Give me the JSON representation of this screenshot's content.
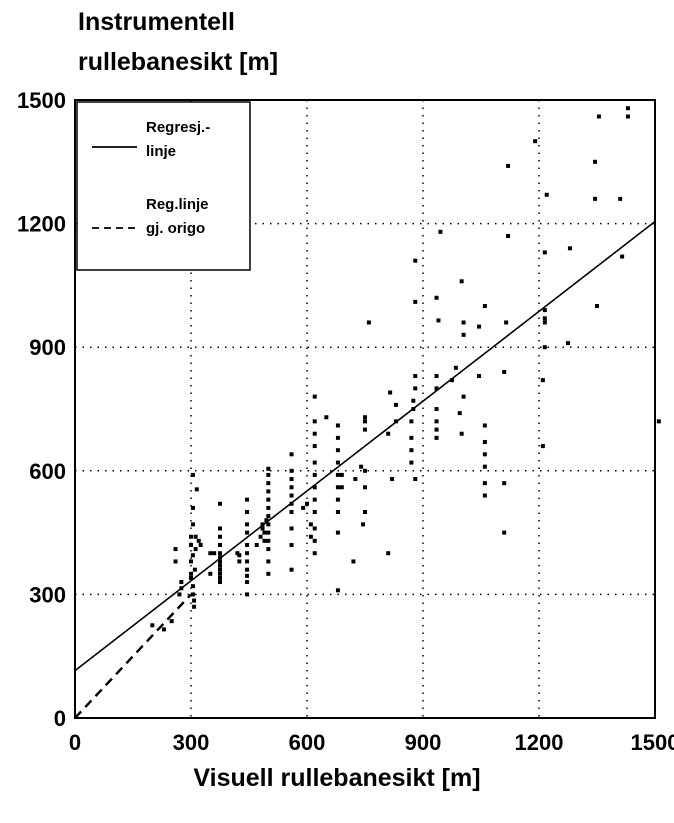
{
  "chart_data": {
    "type": "scatter",
    "ylabel_lines": [
      "Instrumentell",
      "rullebanesikt [m]"
    ],
    "xlabel": "Visuell rullebanesikt [m]",
    "xlim": [
      0,
      1500
    ],
    "ylim": [
      0,
      1500
    ],
    "xticks": [
      0,
      300,
      600,
      900,
      1200,
      1500
    ],
    "yticks": [
      0,
      300,
      600,
      900,
      1200,
      1500
    ],
    "grid": true,
    "legend_position": "top-left",
    "legend": [
      {
        "lines": [
          "Regresj.-",
          "linje"
        ],
        "style": "solid"
      },
      {
        "lines": [
          "Reg.linje",
          "gj. origo"
        ],
        "style": "dashed"
      }
    ],
    "regression_line": {
      "name": "Regresj.- linje",
      "points": [
        [
          0,
          115
        ],
        [
          1500,
          1205
        ]
      ]
    },
    "origin_line": {
      "name": "Reg.linje gj. origo",
      "points": [
        [
          0,
          0
        ],
        [
          300,
          300
        ]
      ]
    },
    "points": [
      [
        200,
        225
      ],
      [
        230,
        215
      ],
      [
        250,
        235
      ],
      [
        260,
        380
      ],
      [
        260,
        410
      ],
      [
        270,
        300
      ],
      [
        275,
        315
      ],
      [
        275,
        330
      ],
      [
        300,
        340
      ],
      [
        300,
        350
      ],
      [
        300,
        380
      ],
      [
        300,
        420
      ],
      [
        300,
        440
      ],
      [
        305,
        300
      ],
      [
        305,
        320
      ],
      [
        305,
        395
      ],
      [
        305,
        470
      ],
      [
        305,
        510
      ],
      [
        305,
        590
      ],
      [
        308,
        270
      ],
      [
        308,
        285
      ],
      [
        310,
        360
      ],
      [
        312,
        410
      ],
      [
        312,
        440
      ],
      [
        315,
        555
      ],
      [
        320,
        430
      ],
      [
        325,
        420
      ],
      [
        350,
        350
      ],
      [
        350,
        400
      ],
      [
        360,
        400
      ],
      [
        375,
        330
      ],
      [
        375,
        340
      ],
      [
        375,
        350
      ],
      [
        375,
        360
      ],
      [
        375,
        370
      ],
      [
        375,
        380
      ],
      [
        375,
        390
      ],
      [
        375,
        400
      ],
      [
        375,
        420
      ],
      [
        375,
        440
      ],
      [
        375,
        460
      ],
      [
        375,
        520
      ],
      [
        420,
        400
      ],
      [
        425,
        380
      ],
      [
        425,
        395
      ],
      [
        445,
        300
      ],
      [
        445,
        330
      ],
      [
        445,
        345
      ],
      [
        445,
        360
      ],
      [
        445,
        380
      ],
      [
        445,
        400
      ],
      [
        445,
        420
      ],
      [
        445,
        450
      ],
      [
        445,
        470
      ],
      [
        445,
        500
      ],
      [
        445,
        530
      ],
      [
        470,
        420
      ],
      [
        480,
        440
      ],
      [
        485,
        470
      ],
      [
        485,
        460
      ],
      [
        490,
        430
      ],
      [
        490,
        450
      ],
      [
        495,
        480
      ],
      [
        500,
        350
      ],
      [
        500,
        380
      ],
      [
        500,
        410
      ],
      [
        500,
        430
      ],
      [
        500,
        450
      ],
      [
        500,
        470
      ],
      [
        500,
        490
      ],
      [
        500,
        510
      ],
      [
        500,
        530
      ],
      [
        500,
        550
      ],
      [
        500,
        570
      ],
      [
        500,
        590
      ],
      [
        500,
        605
      ],
      [
        560,
        360
      ],
      [
        560,
        420
      ],
      [
        560,
        460
      ],
      [
        560,
        500
      ],
      [
        560,
        520
      ],
      [
        560,
        540
      ],
      [
        560,
        560
      ],
      [
        560,
        580
      ],
      [
        560,
        600
      ],
      [
        560,
        640
      ],
      [
        590,
        510
      ],
      [
        600,
        520
      ],
      [
        610,
        440
      ],
      [
        610,
        470
      ],
      [
        620,
        400
      ],
      [
        620,
        430
      ],
      [
        620,
        460
      ],
      [
        620,
        500
      ],
      [
        620,
        530
      ],
      [
        620,
        560
      ],
      [
        620,
        590
      ],
      [
        620,
        620
      ],
      [
        620,
        660
      ],
      [
        620,
        690
      ],
      [
        620,
        720
      ],
      [
        620,
        780
      ],
      [
        650,
        730
      ],
      [
        680,
        310
      ],
      [
        680,
        450
      ],
      [
        680,
        500
      ],
      [
        680,
        530
      ],
      [
        680,
        560
      ],
      [
        680,
        590
      ],
      [
        680,
        620
      ],
      [
        680,
        650
      ],
      [
        680,
        680
      ],
      [
        680,
        710
      ],
      [
        690,
        560
      ],
      [
        690,
        590
      ],
      [
        720,
        380
      ],
      [
        725,
        580
      ],
      [
        740,
        610
      ],
      [
        745,
        470
      ],
      [
        750,
        500
      ],
      [
        750,
        560
      ],
      [
        750,
        600
      ],
      [
        750,
        700
      ],
      [
        750,
        720
      ],
      [
        750,
        730
      ],
      [
        760,
        960
      ],
      [
        810,
        400
      ],
      [
        810,
        690
      ],
      [
        815,
        790
      ],
      [
        820,
        580
      ],
      [
        830,
        720
      ],
      [
        830,
        760
      ],
      [
        870,
        620
      ],
      [
        870,
        650
      ],
      [
        870,
        680
      ],
      [
        870,
        720
      ],
      [
        875,
        750
      ],
      [
        875,
        770
      ],
      [
        880,
        800
      ],
      [
        880,
        830
      ],
      [
        880,
        1010
      ],
      [
        880,
        1110
      ],
      [
        880,
        580
      ],
      [
        935,
        680
      ],
      [
        935,
        700
      ],
      [
        935,
        720
      ],
      [
        935,
        750
      ],
      [
        935,
        800
      ],
      [
        935,
        830
      ],
      [
        935,
        1020
      ],
      [
        940,
        965
      ],
      [
        945,
        1180
      ],
      [
        975,
        820
      ],
      [
        985,
        850
      ],
      [
        995,
        740
      ],
      [
        1000,
        1060
      ],
      [
        1000,
        690
      ],
      [
        1005,
        780
      ],
      [
        1005,
        930
      ],
      [
        1005,
        960
      ],
      [
        1045,
        830
      ],
      [
        1045,
        950
      ],
      [
        1060,
        1000
      ],
      [
        1060,
        710
      ],
      [
        1060,
        670
      ],
      [
        1060,
        640
      ],
      [
        1060,
        610
      ],
      [
        1060,
        570
      ],
      [
        1060,
        540
      ],
      [
        1110,
        450
      ],
      [
        1110,
        570
      ],
      [
        1110,
        840
      ],
      [
        1115,
        960
      ],
      [
        1120,
        1170
      ],
      [
        1120,
        1340
      ],
      [
        1190,
        1400
      ],
      [
        1210,
        660
      ],
      [
        1210,
        820
      ],
      [
        1215,
        900
      ],
      [
        1215,
        960
      ],
      [
        1215,
        970
      ],
      [
        1215,
        990
      ],
      [
        1215,
        1130
      ],
      [
        1220,
        1270
      ],
      [
        1275,
        910
      ],
      [
        1280,
        1140
      ],
      [
        1345,
        1350
      ],
      [
        1345,
        1260
      ],
      [
        1350,
        1000
      ],
      [
        1355,
        1460
      ],
      [
        1410,
        1260
      ],
      [
        1415,
        1120
      ],
      [
        1430,
        1480
      ],
      [
        1430,
        1460
      ],
      [
        1510,
        720
      ]
    ]
  }
}
